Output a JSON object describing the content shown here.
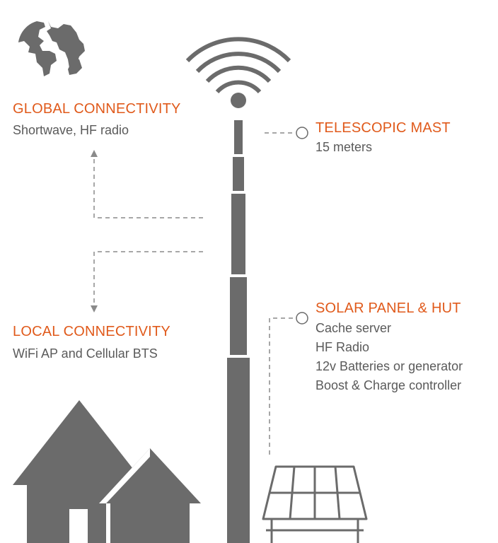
{
  "colors": {
    "accent": "#e05a1b",
    "text": "#5a5a5a",
    "icon": "#6b6b6b"
  },
  "global": {
    "title": "GLOBAL CONNECTIVITY",
    "subtitle": "Shortwave, HF radio"
  },
  "local": {
    "title": "LOCAL CONNECTIVITY",
    "subtitle": "WiFi AP and Cellular BTS"
  },
  "mast": {
    "title": "TELESCOPIC MAST",
    "subtitle": "15 meters"
  },
  "solar": {
    "title": "SOLAR PANEL & HUT",
    "items": [
      "Cache server",
      "HF Radio",
      "12v Batteries or generator",
      "Boost & Charge controller"
    ]
  },
  "icons": {
    "globe": "globe-icon",
    "signal": "wifi-signal-icon",
    "mast": "telescopic-mast-icon",
    "houses": "houses-icon",
    "solar_panel": "solar-panel-icon"
  }
}
